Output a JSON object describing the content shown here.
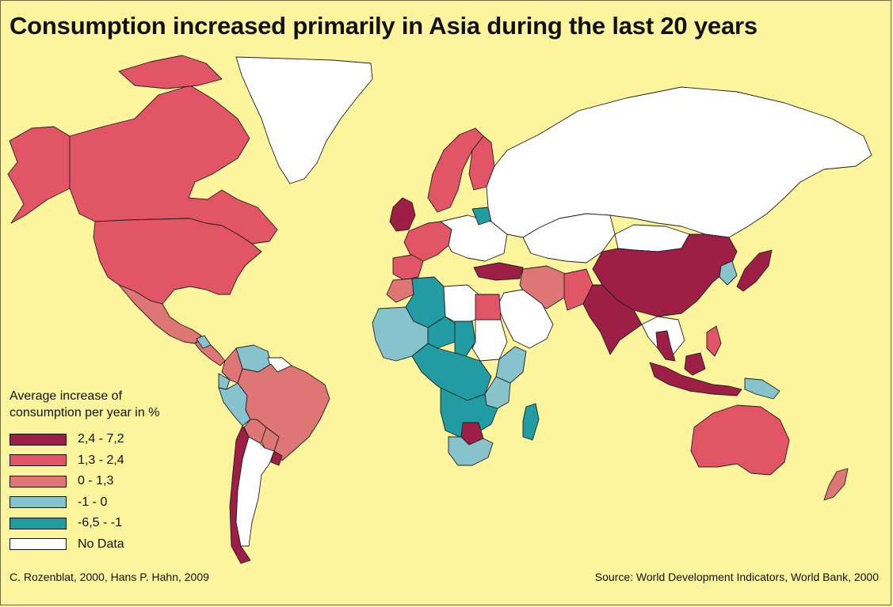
{
  "title": "Consumption increased primarily in Asia during the last 20 years",
  "legend": {
    "title": "Average increase of consumption per year in %",
    "items": [
      {
        "label": "2,4 - 7,2",
        "color": "#9E1F45"
      },
      {
        "label": "1,3 - 2,4",
        "color": "#E15567"
      },
      {
        "label": "0 - 1,3",
        "color": "#DD7675"
      },
      {
        "label": "-1 - 0",
        "color": "#86C3CC"
      },
      {
        "label": "-6,5 - -1",
        "color": "#229CA3"
      },
      {
        "label": "No Data",
        "color": "#FFFFFF"
      }
    ]
  },
  "credits": {
    "left": "C. Rozenblat, 2000, Hans P. Hahn, 2009",
    "right": "Source: World Development Indicators, World Bank, 2000"
  },
  "colors": {
    "background": "#FDF59D"
  },
  "regions": [
    {
      "name": "Canada",
      "class": "1,3 - 2,4"
    },
    {
      "name": "USA",
      "class": "1,3 - 2,4"
    },
    {
      "name": "Alaska",
      "class": "1,3 - 2,4"
    },
    {
      "name": "Greenland",
      "class": "No Data"
    },
    {
      "name": "Mexico",
      "class": "0 - 1,3"
    },
    {
      "name": "Central America",
      "class": "0 - 1,3"
    },
    {
      "name": "Guatemala",
      "class": "-1 - 0"
    },
    {
      "name": "Venezuela",
      "class": "-1 - 0"
    },
    {
      "name": "Colombia",
      "class": "0 - 1,3"
    },
    {
      "name": "Guyanas",
      "class": "No Data"
    },
    {
      "name": "Peru",
      "class": "-1 - 0"
    },
    {
      "name": "Ecuador",
      "class": "-1 - 0"
    },
    {
      "name": "Brazil",
      "class": "0 - 1,3"
    },
    {
      "name": "Bolivia",
      "class": "0 - 1,3"
    },
    {
      "name": "Paraguay",
      "class": "0 - 1,3"
    },
    {
      "name": "Chile",
      "class": "2,4 - 7,2"
    },
    {
      "name": "Argentina",
      "class": "No Data"
    },
    {
      "name": "Uruguay",
      "class": "2,4 - 7,2"
    },
    {
      "name": "Western Europe",
      "class": "1,3 - 2,4"
    },
    {
      "name": "UK",
      "class": "2,4 - 7,2"
    },
    {
      "name": "Iberia",
      "class": "1,3 - 2,4"
    },
    {
      "name": "Scandinavia",
      "class": "1,3 - 2,4"
    },
    {
      "name": "Finland",
      "class": "1,3 - 2,4"
    },
    {
      "name": "Eastern Europe",
      "class": "No Data"
    },
    {
      "name": "Belarus",
      "class": "-6,5 - -1"
    },
    {
      "name": "Ukraine area",
      "class": "No Data"
    },
    {
      "name": "Turkey",
      "class": "2,4 - 7,2"
    },
    {
      "name": "Russia",
      "class": "No Data"
    },
    {
      "name": "Kazakhstan & Central Asia",
      "class": "No Data"
    },
    {
      "name": "Iran",
      "class": "0 - 1,3"
    },
    {
      "name": "Pakistan",
      "class": "1,3 - 2,4"
    },
    {
      "name": "India",
      "class": "2,4 - 7,2"
    },
    {
      "name": "China",
      "class": "2,4 - 7,2"
    },
    {
      "name": "Mongolia",
      "class": "No Data"
    },
    {
      "name": "Korea",
      "class": "-1 - 0"
    },
    {
      "name": "Japan",
      "class": "2,4 - 7,2"
    },
    {
      "name": "Indochina",
      "class": "No Data"
    },
    {
      "name": "Thailand",
      "class": "2,4 - 7,2"
    },
    {
      "name": "Indonesia",
      "class": "2,4 - 7,2"
    },
    {
      "name": "Philippines",
      "class": "1,3 - 2,4"
    },
    {
      "name": "Papua New Guinea",
      "class": "-1 - 0"
    },
    {
      "name": "Australia",
      "class": "1,3 - 2,4"
    },
    {
      "name": "New Zealand",
      "class": "0 - 1,3"
    },
    {
      "name": "Saudi Arabia",
      "class": "No Data"
    },
    {
      "name": "Egypt",
      "class": "1,3 - 2,4"
    },
    {
      "name": "Libya",
      "class": "No Data"
    },
    {
      "name": "Algeria",
      "class": "-6,5 - -1"
    },
    {
      "name": "Morocco",
      "class": "0 - 1,3"
    },
    {
      "name": "West Africa",
      "class": "-1 - 0"
    },
    {
      "name": "Niger",
      "class": "-6,5 - -1"
    },
    {
      "name": "Sudan",
      "class": "No Data"
    },
    {
      "name": "Chad",
      "class": "-6,5 - -1"
    },
    {
      "name": "Central Africa",
      "class": "-6,5 - -1"
    },
    {
      "name": "Kenya",
      "class": "-1 - 0"
    },
    {
      "name": "Tanzania",
      "class": "-1 - 0"
    },
    {
      "name": "Angola & Zambia",
      "class": "-6,5 - -1"
    },
    {
      "name": "Botswana",
      "class": "2,4 - 7,2"
    },
    {
      "name": "South Africa",
      "class": "-1 - 0"
    },
    {
      "name": "Madagascar",
      "class": "-6,5 - -1"
    }
  ]
}
